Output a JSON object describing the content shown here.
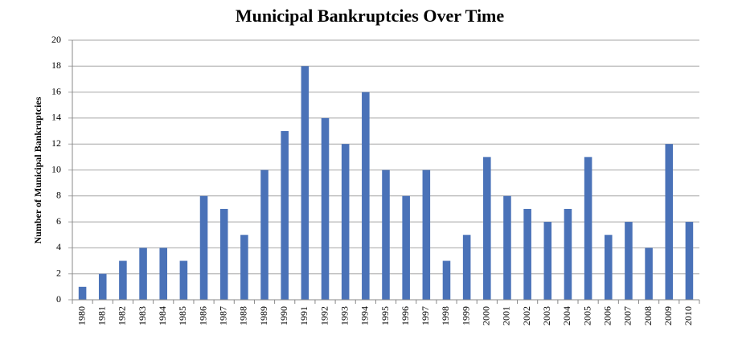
{
  "chart_data": {
    "type": "bar",
    "title": "Municipal Bankruptcies Over Time",
    "y_label": "Number of Municipal Bankruptcies",
    "categories": [
      "1980",
      "1981",
      "1982",
      "1983",
      "1984",
      "1985",
      "1986",
      "1987",
      "1988",
      "1989",
      "1990",
      "1991",
      "1992",
      "1993",
      "1994",
      "1995",
      "1996",
      "1997",
      "1998",
      "1999",
      "2000",
      "2001",
      "2002",
      "2003",
      "2004",
      "2005",
      "2006",
      "2007",
      "2008",
      "2009",
      "2010"
    ],
    "values": [
      1,
      2,
      3,
      4,
      4,
      3,
      8,
      7,
      5,
      10,
      13,
      18,
      14,
      12,
      16,
      10,
      8,
      10,
      3,
      5,
      11,
      8,
      7,
      6,
      7,
      11,
      5,
      6,
      4,
      12,
      6
    ],
    "color": "#4a72b8",
    "ylim": [
      0,
      20
    ],
    "yticks": [
      0,
      2,
      4,
      6,
      8,
      10,
      12,
      14,
      16,
      18,
      20
    ],
    "grid": true
  }
}
